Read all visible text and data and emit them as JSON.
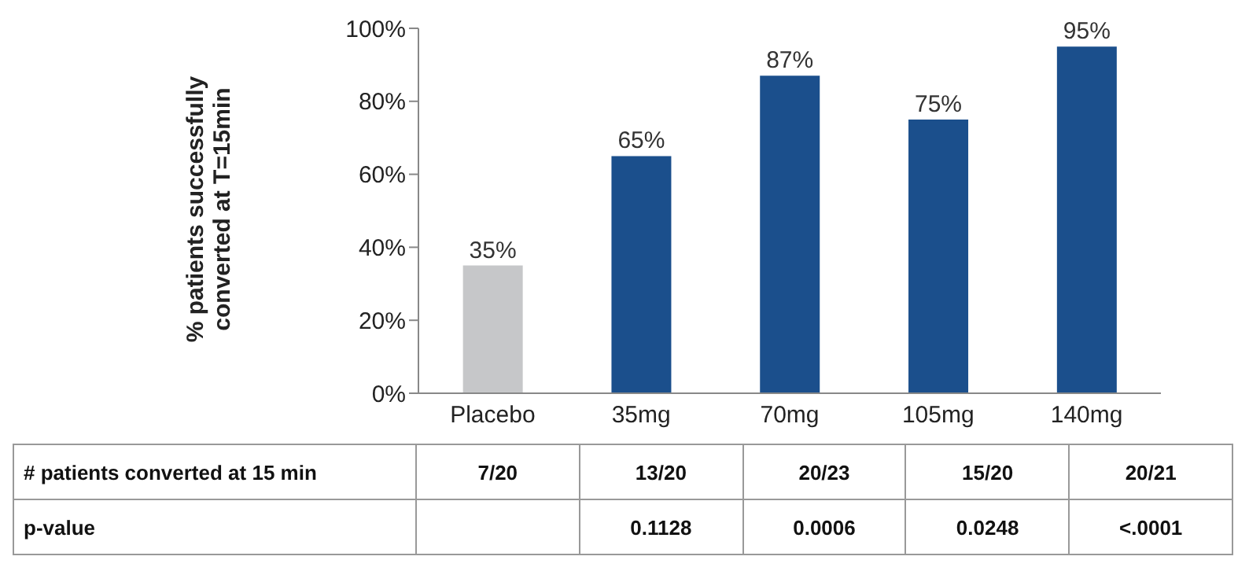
{
  "chart_data": {
    "type": "bar",
    "ylabel": "% patients successfully converted at T=15min",
    "categories": [
      "Placebo",
      "35mg",
      "70mg",
      "105mg",
      "140mg"
    ],
    "values": [
      35,
      65,
      87,
      75,
      95
    ],
    "colors": [
      "#c6c7c9",
      "#1b4f8c",
      "#1b4f8c",
      "#1b4f8c",
      "#1b4f8c"
    ],
    "ylim": [
      0,
      100
    ],
    "yticks": [
      {
        "value": 0,
        "label": "0%"
      },
      {
        "value": 20,
        "label": "20%"
      },
      {
        "value": 40,
        "label": "40%"
      },
      {
        "value": 60,
        "label": "60%"
      },
      {
        "value": 80,
        "label": "80%"
      },
      {
        "value": 100,
        "label": "100%"
      }
    ],
    "data_labels": true,
    "value_labels": [
      "35%",
      "65%",
      "87%",
      "75%",
      "95%"
    ],
    "annotations": [
      "# patients converted at 15 min",
      "7/20",
      "13/20",
      "20/23",
      "15/20",
      "20/21",
      "p-value",
      "0.1128",
      "0.0006",
      "0.0248",
      "<.0001"
    ]
  }
}
